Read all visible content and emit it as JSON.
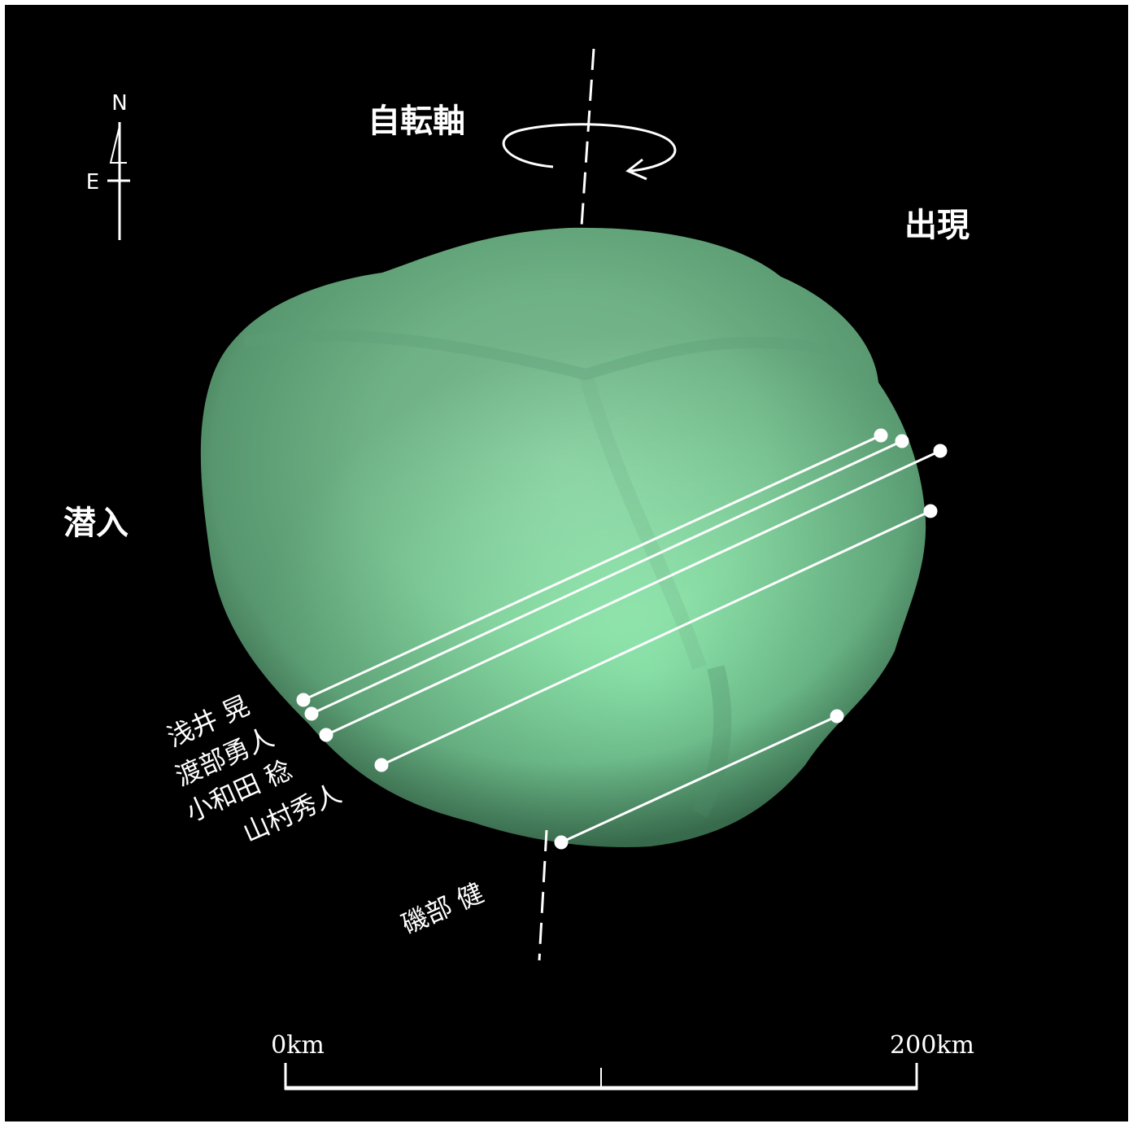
{
  "labels": {
    "rotation_axis": "自転軸",
    "reappearance": "出現",
    "disappearance": "潜入"
  },
  "compass": {
    "north": "N",
    "east": "E"
  },
  "observers": [
    {
      "name": "浅井 晃"
    },
    {
      "name": "渡部勇人"
    },
    {
      "name": "小和田 稔"
    },
    {
      "name": "山村秀人"
    },
    {
      "name": "磯部 健"
    }
  ],
  "scale_bar": {
    "start_label": "0km",
    "end_label": "200km",
    "length_km": 200
  },
  "colors": {
    "background": "#000000",
    "asteroid": "#8fe8ac",
    "lines": "#ffffff"
  }
}
